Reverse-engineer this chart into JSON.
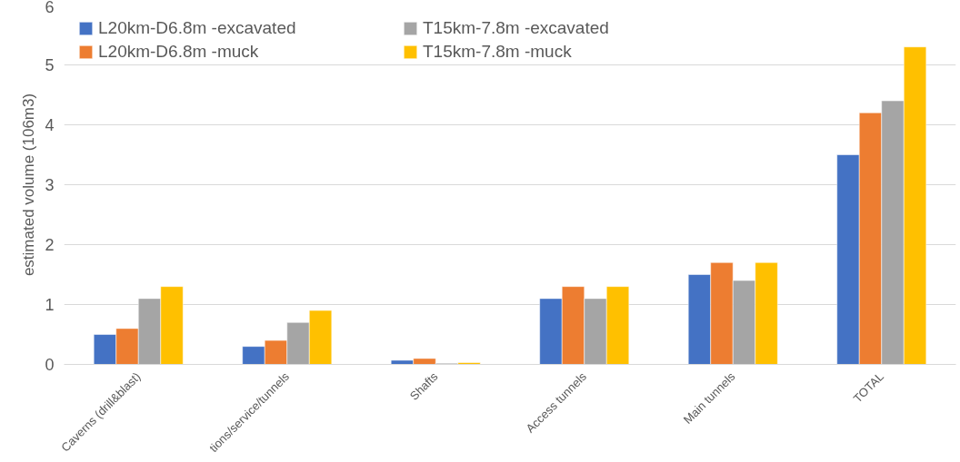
{
  "chart_data": {
    "type": "bar",
    "ylabel": "estimated volume (106m3)",
    "categories": [
      "Caverns (drill&blast)",
      "tions/service/tunnels",
      "Shafts",
      "Access tunnels",
      "Main tunnels",
      "TOTAL"
    ],
    "series": [
      {
        "name": "L20km-D6.8m -excavated",
        "color": "#4472c4",
        "values": [
          0.5,
          0.3,
          0.07,
          1.1,
          1.5,
          3.5
        ]
      },
      {
        "name": "L20km-D6.8m -muck",
        "color": "#ed7d31",
        "values": [
          0.6,
          0.4,
          0.1,
          1.3,
          1.7,
          4.2
        ]
      },
      {
        "name": "T15km-7.8m -excavated",
        "color": "#a5a5a5",
        "values": [
          1.1,
          0.7,
          0.02,
          1.1,
          1.4,
          4.4
        ]
      },
      {
        "name": "T15km-7.8m -muck",
        "color": "#ffc000",
        "values": [
          1.3,
          0.9,
          0.03,
          1.3,
          1.7,
          5.3
        ]
      }
    ],
    "ylim": [
      0,
      6
    ],
    "yticks": [
      0,
      1,
      2,
      3,
      4,
      5,
      6
    ],
    "grid": "y",
    "legend": "top left"
  }
}
